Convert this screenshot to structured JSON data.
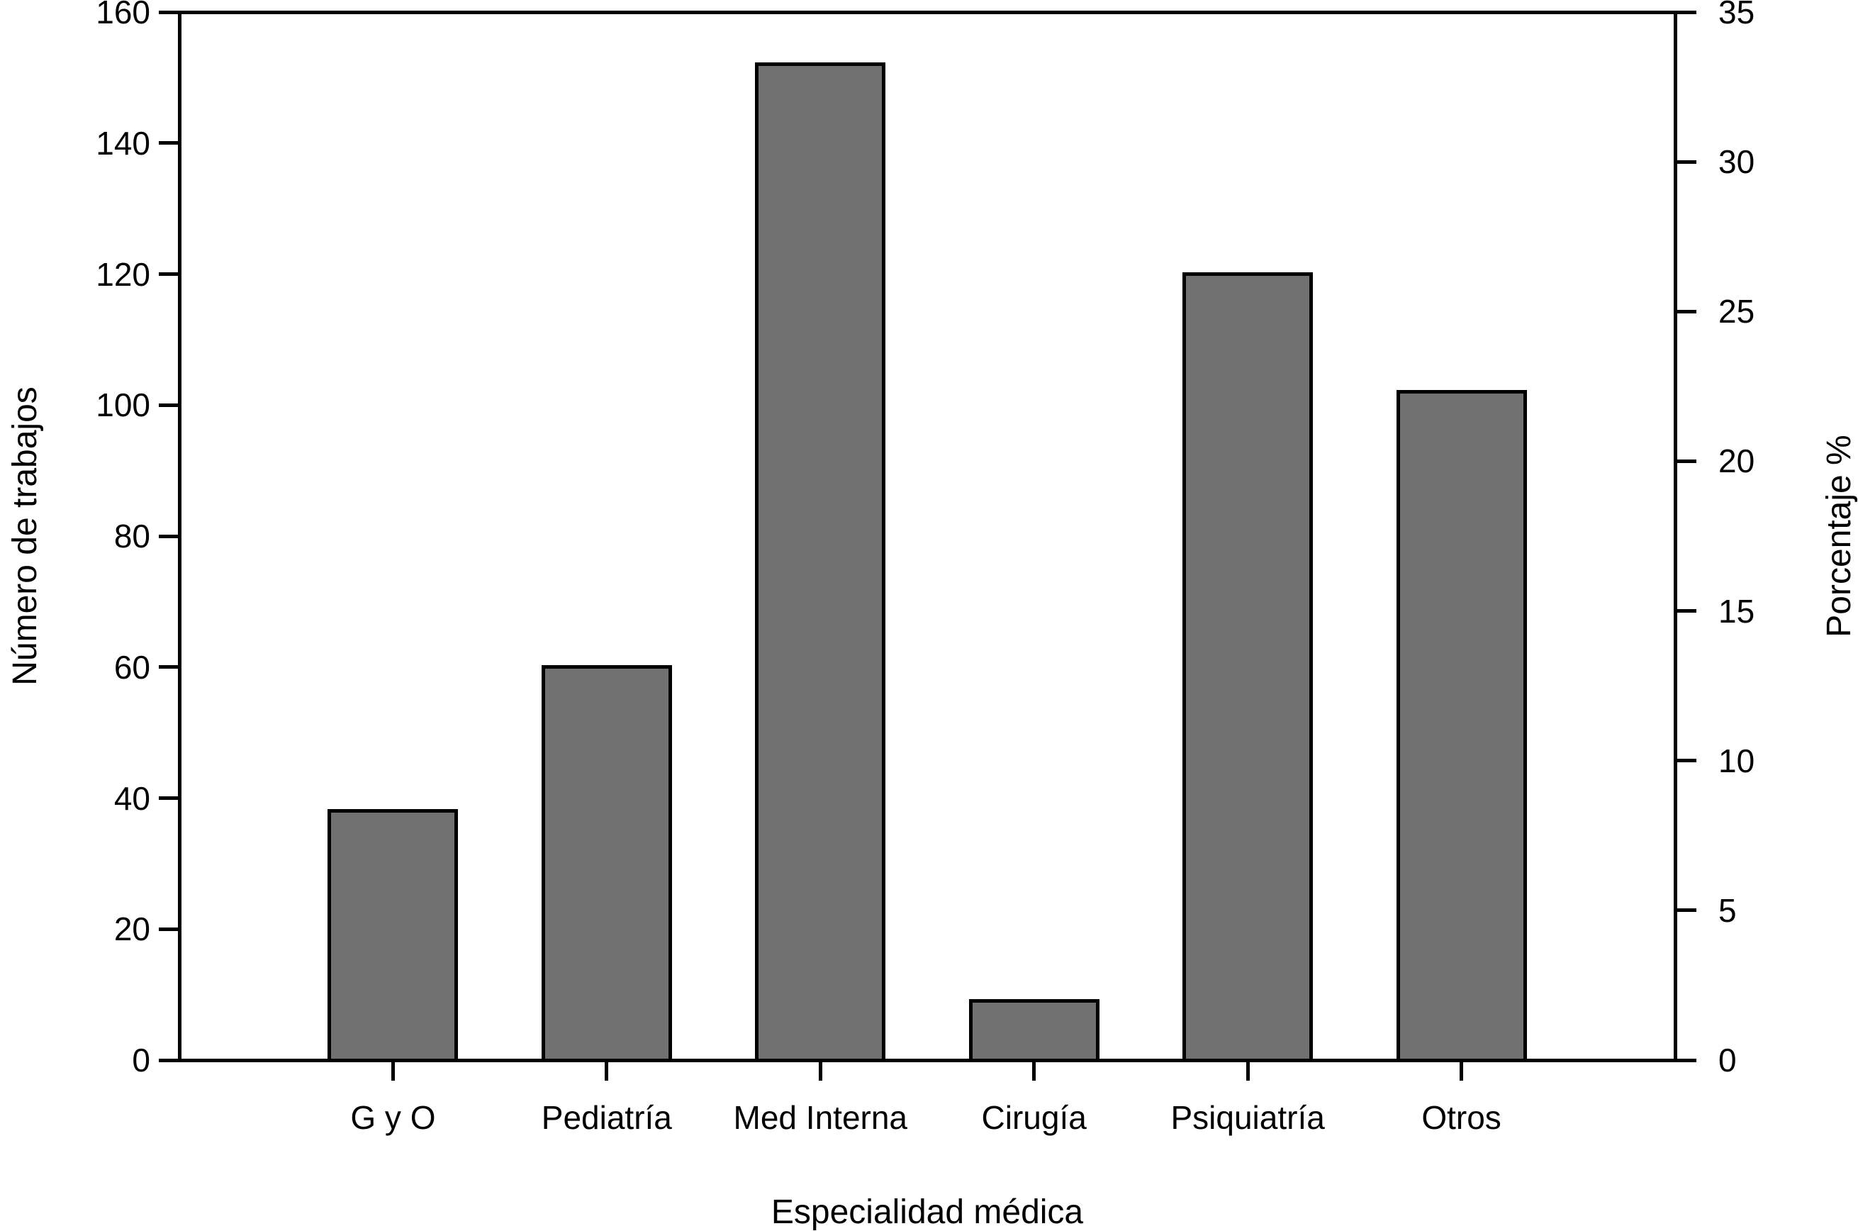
{
  "chart_data": {
    "type": "bar",
    "categories": [
      "G y O",
      "Pediatría",
      "Med Interna",
      "Cirugía",
      "Psiquiatría",
      "Otros"
    ],
    "values": [
      38,
      60,
      152,
      9,
      120,
      102
    ],
    "xlabel": "Especialidad médica",
    "ylabel_left": "Número de trabajos",
    "ylabel_right": "Porcentaje %",
    "left_axis": {
      "min": 0,
      "max": 160,
      "tick_step": 20,
      "tick_labels": [
        "0",
        "20",
        "40",
        "60",
        "80",
        "100",
        "120",
        "140",
        "160"
      ]
    },
    "right_axis": {
      "min": 0,
      "max": 35,
      "tick_step": 5,
      "tick_labels": [
        "0",
        "5",
        "10",
        "15",
        "20",
        "25",
        "30",
        "35"
      ]
    },
    "legend": "none",
    "grid": false,
    "bar_color": "#717171",
    "bar_border_color": "#000000",
    "axis_color": "#000000",
    "background_color": "#ffffff"
  }
}
